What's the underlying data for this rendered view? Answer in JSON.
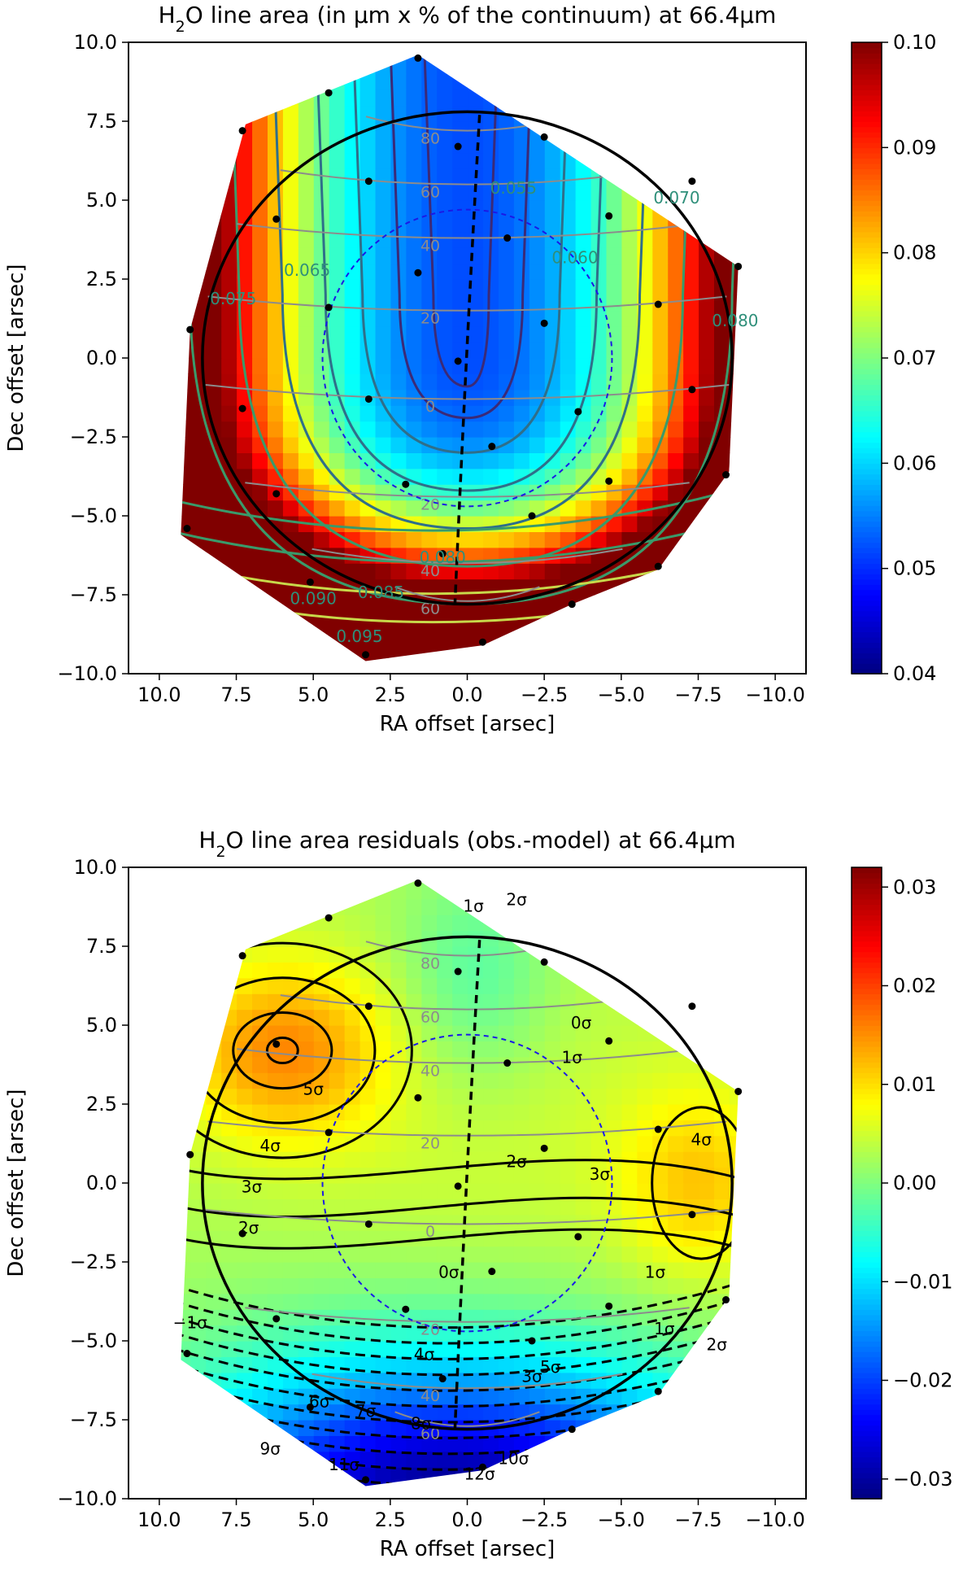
{
  "chart_data": [
    {
      "type": "heatmap",
      "title_prefix": "H",
      "title_sub": "2",
      "title_suffix": "O line area (in μm x % of the continuum) at 66.4μm",
      "xlabel": "RA offset [arsec]",
      "ylabel": "Dec offset [arsec]",
      "xlim": [
        11.0,
        -11.0
      ],
      "ylim": [
        -10.0,
        10.0
      ],
      "x_ticks": [
        "10.0",
        "7.5",
        "5.0",
        "2.5",
        "0.0",
        "−2.5",
        "−5.0",
        "−7.5",
        "−10.0"
      ],
      "y_ticks": [
        "−10.0",
        "−7.5",
        "−5.0",
        "−2.5",
        "0.0",
        "2.5",
        "5.0",
        "7.5",
        "10.0"
      ],
      "colorbar": {
        "range": [
          0.04,
          0.1
        ],
        "ticks": [
          "0.04",
          "0.05",
          "0.06",
          "0.07",
          "0.08",
          "0.09",
          "0.10"
        ],
        "colormap": "jet"
      },
      "contour_labels": [
        "0.055",
        "0.060",
        "0.065",
        "0.070",
        "0.075",
        "0.080",
        "0.080",
        "0.085",
        "0.090",
        "0.095"
      ],
      "latitude_labels": [
        "80",
        "60",
        "40",
        "20",
        "0",
        "20",
        "40",
        "60"
      ],
      "pointings": [
        [
          1.6,
          9.5
        ],
        [
          4.5,
          8.4
        ],
        [
          7.3,
          7.2
        ],
        [
          -7.3,
          5.6
        ],
        [
          -2.5,
          7.0
        ],
        [
          0.3,
          6.7
        ],
        [
          3.2,
          5.6
        ],
        [
          6.2,
          4.4
        ],
        [
          -4.6,
          4.5
        ],
        [
          -1.3,
          3.8
        ],
        [
          1.6,
          2.7
        ],
        [
          -8.8,
          2.9
        ],
        [
          4.5,
          1.6
        ],
        [
          -6.2,
          1.7
        ],
        [
          -2.5,
          1.1
        ],
        [
          9.0,
          0.9
        ],
        [
          0.3,
          -0.1
        ],
        [
          3.2,
          -1.3
        ],
        [
          -3.6,
          -1.7
        ],
        [
          -7.3,
          -1.0
        ],
        [
          7.3,
          -1.6
        ],
        [
          -0.8,
          -2.8
        ],
        [
          2.0,
          -4.0
        ],
        [
          -4.6,
          -3.9
        ],
        [
          6.2,
          -4.3
        ],
        [
          -2.1,
          -5.0
        ],
        [
          9.1,
          -5.4
        ],
        [
          0.8,
          -6.2
        ],
        [
          -6.2,
          -6.6
        ],
        [
          5.1,
          -7.1
        ],
        [
          -3.4,
          -7.8
        ],
        [
          3.3,
          -9.4
        ],
        [
          -0.5,
          -9.0
        ],
        [
          -8.4,
          -3.7
        ]
      ]
    },
    {
      "type": "heatmap",
      "title_prefix": "H",
      "title_sub": "2",
      "title_suffix": "O line area residuals (obs.-model) at 66.4μm",
      "xlabel": "RA offset [arsec]",
      "ylabel": "Dec offset [arsec]",
      "xlim": [
        11.0,
        -11.0
      ],
      "ylim": [
        -10.0,
        10.0
      ],
      "x_ticks": [
        "10.0",
        "7.5",
        "5.0",
        "2.5",
        "0.0",
        "−2.5",
        "−5.0",
        "−7.5",
        "−10.0"
      ],
      "y_ticks": [
        "−10.0",
        "−7.5",
        "−5.0",
        "−2.5",
        "0.0",
        "2.5",
        "5.0",
        "7.5",
        "10.0"
      ],
      "colorbar": {
        "range": [
          -0.032,
          0.032
        ],
        "ticks": [
          "−0.03",
          "−0.02",
          "−0.01",
          "0.00",
          "0.01",
          "0.02",
          "0.03"
        ],
        "colormap": "jet"
      },
      "contour_labels": [
        "5σ",
        "4σ",
        "3σ",
        "2σ",
        "2σ",
        "3σ",
        "4σ",
        "1σ",
        "0σ",
        "1σ",
        "0σ",
        "1σ",
        "−1σ",
        "2σ",
        "1σ",
        "2σ",
        "3σ",
        "4σ",
        "5σ",
        "6σ",
        "7σ",
        "8σ",
        "9σ",
        "10σ",
        "11σ",
        "12σ"
      ],
      "latitude_labels": [
        "80",
        "60",
        "40",
        "20",
        "0",
        "20",
        "40",
        "60"
      ],
      "pointings": [
        [
          1.6,
          9.5
        ],
        [
          4.5,
          8.4
        ],
        [
          7.3,
          7.2
        ],
        [
          -7.3,
          5.6
        ],
        [
          -2.5,
          7.0
        ],
        [
          0.3,
          6.7
        ],
        [
          3.2,
          5.6
        ],
        [
          6.2,
          4.4
        ],
        [
          -4.6,
          4.5
        ],
        [
          -1.3,
          3.8
        ],
        [
          1.6,
          2.7
        ],
        [
          -8.8,
          2.9
        ],
        [
          4.5,
          1.6
        ],
        [
          -6.2,
          1.7
        ],
        [
          -2.5,
          1.1
        ],
        [
          9.0,
          0.9
        ],
        [
          0.3,
          -0.1
        ],
        [
          3.2,
          -1.3
        ],
        [
          -3.6,
          -1.7
        ],
        [
          -7.3,
          -1.0
        ],
        [
          7.3,
          -1.6
        ],
        [
          -0.8,
          -2.8
        ],
        [
          2.0,
          -4.0
        ],
        [
          -4.6,
          -3.9
        ],
        [
          6.2,
          -4.3
        ],
        [
          -2.1,
          -5.0
        ],
        [
          9.1,
          -5.4
        ],
        [
          0.8,
          -6.2
        ],
        [
          -6.2,
          -6.6
        ],
        [
          5.1,
          -7.1
        ],
        [
          -3.4,
          -7.8
        ],
        [
          3.3,
          -9.4
        ],
        [
          -0.5,
          -9.0
        ],
        [
          -8.4,
          -3.7
        ]
      ]
    }
  ]
}
